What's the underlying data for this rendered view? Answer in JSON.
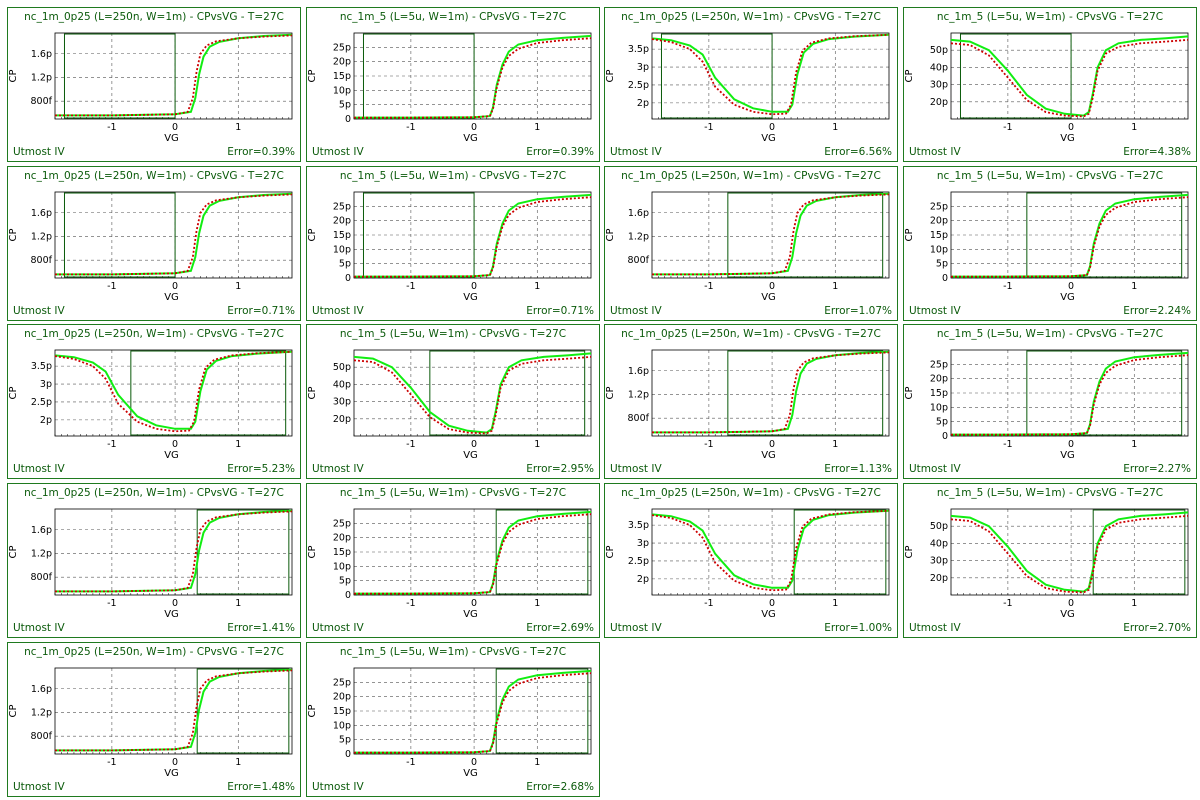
{
  "colors": {
    "frame": "#1f7a1f",
    "text": "#0a5a0a",
    "sim": "#11ee11",
    "meas": "#cc0000",
    "window": "#0a5a0a",
    "grid": "#555555"
  },
  "chart_data": [
    {
      "type": "line",
      "model": "A",
      "title": "nc_1m_0p25 (L=250n, W=1m) - CPvsVG - T=27C",
      "xlabel": "VG",
      "ylabel": "CP",
      "xticks": [
        "-1",
        "0",
        "1"
      ],
      "yticks": [
        "800f",
        "1.2p",
        "1.6p"
      ],
      "xlim": [
        -1.9,
        1.85
      ],
      "ylim": [
        0.5,
        1.95
      ],
      "window": [
        -1.75,
        0.0
      ],
      "grid": true,
      "series": [
        {
          "name": "",
          "x": [],
          "y": []
        }
      ],
      "footer_left": "Utmost IV",
      "footer_right": "Error=0.39%"
    },
    {
      "type": "line",
      "model": "B",
      "title": "nc_1m_5 (L=5u, W=1m) - CPvsVG - T=27C",
      "xlabel": "VG",
      "ylabel": "CP",
      "xticks": [
        "-1",
        "0",
        "1"
      ],
      "yticks": [
        "0",
        "5p",
        "10p",
        "15p",
        "20p",
        "25p"
      ],
      "xlim": [
        -1.9,
        1.85
      ],
      "ylim": [
        0,
        30
      ],
      "window": [
        -1.75,
        0.0
      ],
      "grid": true,
      "footer_left": "Utmost IV",
      "footer_right": "Error=0.39%"
    },
    {
      "type": "line",
      "model": "C",
      "title": "nc_1m_0p25 (L=250n, W=1m) - CPvsVG - T=27C",
      "xlabel": "VG",
      "ylabel": "CP",
      "xticks": [
        "-1",
        "0",
        "1"
      ],
      "yticks": [
        "2p",
        "2.5p",
        "3p",
        "3.5p"
      ],
      "xlim": [
        -1.9,
        1.85
      ],
      "ylim": [
        1.55,
        3.95
      ],
      "window": [
        -1.75,
        0.0
      ],
      "grid": true,
      "footer_left": "Utmost IV",
      "footer_right": "Error=6.56%"
    },
    {
      "type": "line",
      "model": "D",
      "title": "nc_1m_5 (L=5u, W=1m) - CPvsVG - T=27C",
      "xlabel": "VG",
      "ylabel": "CP",
      "xticks": [
        "-1",
        "0",
        "1"
      ],
      "yticks": [
        "20p",
        "30p",
        "40p",
        "50p"
      ],
      "xlim": [
        -1.9,
        1.85
      ],
      "ylim": [
        10,
        60
      ],
      "window": [
        -1.75,
        0.0
      ],
      "grid": true,
      "footer_left": "Utmost IV",
      "footer_right": "Error=4.38%"
    },
    {
      "type": "line",
      "model": "A",
      "title": "nc_1m_0p25 (L=250n, W=1m) - CPvsVG - T=27C",
      "xlabel": "VG",
      "ylabel": "CP",
      "xticks": [
        "-1",
        "0",
        "1"
      ],
      "yticks": [
        "800f",
        "1.2p",
        "1.6p"
      ],
      "xlim": [
        -1.9,
        1.85
      ],
      "ylim": [
        0.5,
        1.95
      ],
      "window": [
        -1.75,
        0.0
      ],
      "grid": true,
      "footer_left": "Utmost IV",
      "footer_right": "Error=0.71%"
    },
    {
      "type": "line",
      "model": "B",
      "title": "nc_1m_5 (L=5u, W=1m) - CPvsVG - T=27C",
      "xlabel": "VG",
      "ylabel": "CP",
      "xticks": [
        "-1",
        "0",
        "1"
      ],
      "yticks": [
        "0",
        "5p",
        "10p",
        "15p",
        "20p",
        "25p"
      ],
      "xlim": [
        -1.9,
        1.85
      ],
      "ylim": [
        0,
        30
      ],
      "window": [
        -1.75,
        0.0
      ],
      "grid": true,
      "footer_left": "Utmost IV",
      "footer_right": "Error=0.71%"
    },
    {
      "type": "line",
      "model": "A",
      "title": "nc_1m_0p25 (L=250n, W=1m) - CPvsVG - T=27C",
      "xlabel": "VG",
      "ylabel": "CP",
      "xticks": [
        "-1",
        "0",
        "1"
      ],
      "yticks": [
        "800f",
        "1.2p",
        "1.6p"
      ],
      "xlim": [
        -1.9,
        1.85
      ],
      "ylim": [
        0.5,
        1.95
      ],
      "window": [
        -0.7,
        1.75
      ],
      "grid": true,
      "footer_left": "Utmost IV",
      "footer_right": "Error=1.07%"
    },
    {
      "type": "line",
      "model": "B",
      "title": "nc_1m_5 (L=5u, W=1m) - CPvsVG - T=27C",
      "xlabel": "VG",
      "ylabel": "CP",
      "xticks": [
        "-1",
        "0",
        "1"
      ],
      "yticks": [
        "0",
        "5p",
        "10p",
        "15p",
        "20p",
        "25p"
      ],
      "xlim": [
        -1.9,
        1.85
      ],
      "ylim": [
        0,
        30
      ],
      "window": [
        -0.7,
        1.75
      ],
      "grid": true,
      "footer_left": "Utmost IV",
      "footer_right": "Error=2.24%"
    },
    {
      "type": "line",
      "model": "C",
      "title": "nc_1m_0p25 (L=250n, W=1m) - CPvsVG - T=27C",
      "xlabel": "VG",
      "ylabel": "CP",
      "xticks": [
        "-1",
        "0",
        "1"
      ],
      "yticks": [
        "2p",
        "2.5p",
        "3p",
        "3.5p"
      ],
      "xlim": [
        -1.9,
        1.85
      ],
      "ylim": [
        1.55,
        3.95
      ],
      "window": [
        -0.7,
        1.75
      ],
      "grid": true,
      "footer_left": "Utmost IV",
      "footer_right": "Error=5.23%"
    },
    {
      "type": "line",
      "model": "D",
      "title": "nc_1m_5 (L=5u, W=1m) - CPvsVG - T=27C",
      "xlabel": "VG",
      "ylabel": "CP",
      "xticks": [
        "-1",
        "0",
        "1"
      ],
      "yticks": [
        "20p",
        "30p",
        "40p",
        "50p"
      ],
      "xlim": [
        -1.9,
        1.85
      ],
      "ylim": [
        10,
        60
      ],
      "window": [
        -0.7,
        1.75
      ],
      "grid": true,
      "footer_left": "Utmost IV",
      "footer_right": "Error=2.95%"
    },
    {
      "type": "line",
      "model": "A",
      "title": "nc_1m_0p25 (L=250n, W=1m) - CPvsVG - T=27C",
      "xlabel": "VG",
      "ylabel": "CP",
      "xticks": [
        "-1",
        "0",
        "1"
      ],
      "yticks": [
        "800f",
        "1.2p",
        "1.6p"
      ],
      "xlim": [
        -1.9,
        1.85
      ],
      "ylim": [
        0.5,
        1.95
      ],
      "window": [
        -0.7,
        1.75
      ],
      "grid": true,
      "footer_left": "Utmost IV",
      "footer_right": "Error=1.13%"
    },
    {
      "type": "line",
      "model": "B",
      "title": "nc_1m_5 (L=5u, W=1m) - CPvsVG - T=27C",
      "xlabel": "VG",
      "ylabel": "CP",
      "xticks": [
        "-1",
        "0",
        "1"
      ],
      "yticks": [
        "0",
        "5p",
        "10p",
        "15p",
        "20p",
        "25p"
      ],
      "xlim": [
        -1.9,
        1.85
      ],
      "ylim": [
        0,
        30
      ],
      "window": [
        -0.7,
        1.75
      ],
      "grid": true,
      "footer_left": "Utmost IV",
      "footer_right": "Error=2.27%"
    },
    {
      "type": "line",
      "model": "A",
      "title": "nc_1m_0p25 (L=250n, W=1m) - CPvsVG - T=27C",
      "xlabel": "VG",
      "ylabel": "CP",
      "xticks": [
        "-1",
        "0",
        "1"
      ],
      "yticks": [
        "800f",
        "1.2p",
        "1.6p"
      ],
      "xlim": [
        -1.9,
        1.85
      ],
      "ylim": [
        0.5,
        1.95
      ],
      "window": [
        0.35,
        1.8
      ],
      "grid": true,
      "footer_left": "Utmost IV",
      "footer_right": "Error=1.41%"
    },
    {
      "type": "line",
      "model": "B",
      "title": "nc_1m_5 (L=5u, W=1m) - CPvsVG - T=27C",
      "xlabel": "VG",
      "ylabel": "CP",
      "xticks": [
        "-1",
        "0",
        "1"
      ],
      "yticks": [
        "0",
        "5p",
        "10p",
        "15p",
        "20p",
        "25p"
      ],
      "xlim": [
        -1.9,
        1.85
      ],
      "ylim": [
        0,
        30
      ],
      "window": [
        0.35,
        1.8
      ],
      "grid": true,
      "footer_left": "Utmost IV",
      "footer_right": "Error=2.69%"
    },
    {
      "type": "line",
      "model": "C",
      "title": "nc_1m_0p25 (L=250n, W=1m) - CPvsVG - T=27C",
      "xlabel": "VG",
      "ylabel": "CP",
      "xticks": [
        "-1",
        "0",
        "1"
      ],
      "yticks": [
        "2p",
        "2.5p",
        "3p",
        "3.5p"
      ],
      "xlim": [
        -1.9,
        1.85
      ],
      "ylim": [
        1.55,
        3.95
      ],
      "window": [
        0.35,
        1.8
      ],
      "grid": true,
      "footer_left": "Utmost IV",
      "footer_right": "Error=1.00%"
    },
    {
      "type": "line",
      "model": "D",
      "title": "nc_1m_5 (L=5u, W=1m) - CPvsVG - T=27C",
      "xlabel": "VG",
      "ylabel": "CP",
      "xticks": [
        "-1",
        "0",
        "1"
      ],
      "yticks": [
        "20p",
        "30p",
        "40p",
        "50p"
      ],
      "xlim": [
        -1.9,
        1.85
      ],
      "ylim": [
        10,
        60
      ],
      "window": [
        0.35,
        1.8
      ],
      "grid": true,
      "footer_left": "Utmost IV",
      "footer_right": "Error=2.70%"
    },
    {
      "type": "line",
      "model": "A",
      "title": "nc_1m_0p25 (L=250n, W=1m) - CPvsVG - T=27C",
      "xlabel": "VG",
      "ylabel": "CP",
      "xticks": [
        "-1",
        "0",
        "1"
      ],
      "yticks": [
        "800f",
        "1.2p",
        "1.6p"
      ],
      "xlim": [
        -1.9,
        1.85
      ],
      "ylim": [
        0.5,
        1.95
      ],
      "window": [
        0.35,
        1.8
      ],
      "grid": true,
      "footer_left": "Utmost IV",
      "footer_right": "Error=1.48%"
    },
    {
      "type": "line",
      "model": "B",
      "title": "nc_1m_5 (L=5u, W=1m) - CPvsVG - T=27C",
      "xlabel": "VG",
      "ylabel": "CP",
      "xticks": [
        "-1",
        "0",
        "1"
      ],
      "yticks": [
        "0",
        "5p",
        "10p",
        "15p",
        "20p",
        "25p"
      ],
      "xlim": [
        -1.9,
        1.85
      ],
      "ylim": [
        0,
        30
      ],
      "window": [
        0.35,
        1.8
      ],
      "grid": true,
      "footer_left": "Utmost IV",
      "footer_right": "Error=2.68%"
    }
  ],
  "curves": {
    "A": {
      "sim": {
        "x": [
          -1.9,
          -1.0,
          0.0,
          0.25,
          0.32,
          0.38,
          0.45,
          0.55,
          0.7,
          1.0,
          1.4,
          1.85
        ],
        "y": [
          0.56,
          0.56,
          0.58,
          0.62,
          0.85,
          1.25,
          1.55,
          1.72,
          1.8,
          1.86,
          1.9,
          1.92
        ]
      },
      "meas": {
        "x": [
          -1.9,
          -1.0,
          0.0,
          0.2,
          0.28,
          0.34,
          0.4,
          0.5,
          0.65,
          1.0,
          1.4,
          1.85
        ],
        "y": [
          0.56,
          0.56,
          0.58,
          0.62,
          0.85,
          1.3,
          1.6,
          1.74,
          1.81,
          1.86,
          1.89,
          1.91
        ]
      }
    },
    "B": {
      "sim": {
        "x": [
          -1.9,
          -1.0,
          0.0,
          0.25,
          0.3,
          0.36,
          0.45,
          0.55,
          0.7,
          1.0,
          1.4,
          1.85
        ],
        "y": [
          0.5,
          0.5,
          0.6,
          1.0,
          4,
          12,
          19,
          23.5,
          26,
          27.5,
          28.3,
          29
        ]
      },
      "meas": {
        "x": [
          -1.9,
          -1.0,
          0.0,
          0.25,
          0.3,
          0.36,
          0.45,
          0.55,
          0.7,
          1.0,
          1.4,
          1.85
        ],
        "y": [
          0.5,
          0.5,
          0.6,
          1.0,
          3.5,
          11,
          18,
          22,
          24.5,
          26.5,
          27.5,
          28.2
        ]
      }
    },
    "C": {
      "sim": {
        "x": [
          -1.9,
          -1.6,
          -1.3,
          -1.1,
          -0.9,
          -0.6,
          -0.3,
          0.0,
          0.25,
          0.32,
          0.4,
          0.5,
          0.65,
          0.9,
          1.3,
          1.85
        ],
        "y": [
          3.8,
          3.75,
          3.6,
          3.35,
          2.7,
          2.1,
          1.85,
          1.75,
          1.75,
          1.95,
          2.8,
          3.4,
          3.65,
          3.78,
          3.85,
          3.9
        ]
      },
      "meas": {
        "x": [
          -1.9,
          -1.6,
          -1.3,
          -1.1,
          -0.9,
          -0.6,
          -0.3,
          0.0,
          0.22,
          0.3,
          0.38,
          0.48,
          0.62,
          0.9,
          1.3,
          1.85
        ],
        "y": [
          3.78,
          3.7,
          3.5,
          3.15,
          2.45,
          1.95,
          1.75,
          1.68,
          1.7,
          1.95,
          2.85,
          3.45,
          3.68,
          3.8,
          3.86,
          3.9
        ]
      }
    },
    "D": {
      "sim": {
        "x": [
          -1.9,
          -1.6,
          -1.3,
          -1.0,
          -0.7,
          -0.4,
          -0.1,
          0.2,
          0.28,
          0.34,
          0.42,
          0.55,
          0.75,
          1.1,
          1.5,
          1.85
        ],
        "y": [
          56,
          55,
          50,
          38,
          24,
          16,
          13,
          12,
          14,
          24,
          40,
          50,
          54,
          56,
          57,
          58
        ]
      },
      "meas": {
        "x": [
          -1.9,
          -1.6,
          -1.3,
          -1.0,
          -0.7,
          -0.4,
          -0.1,
          0.2,
          0.28,
          0.34,
          0.42,
          0.55,
          0.75,
          1.1,
          1.5,
          1.85
        ],
        "y": [
          54,
          53,
          47,
          34,
          21,
          14,
          12,
          11.5,
          13,
          22,
          38,
          48,
          52,
          54,
          55,
          56
        ]
      }
    }
  }
}
